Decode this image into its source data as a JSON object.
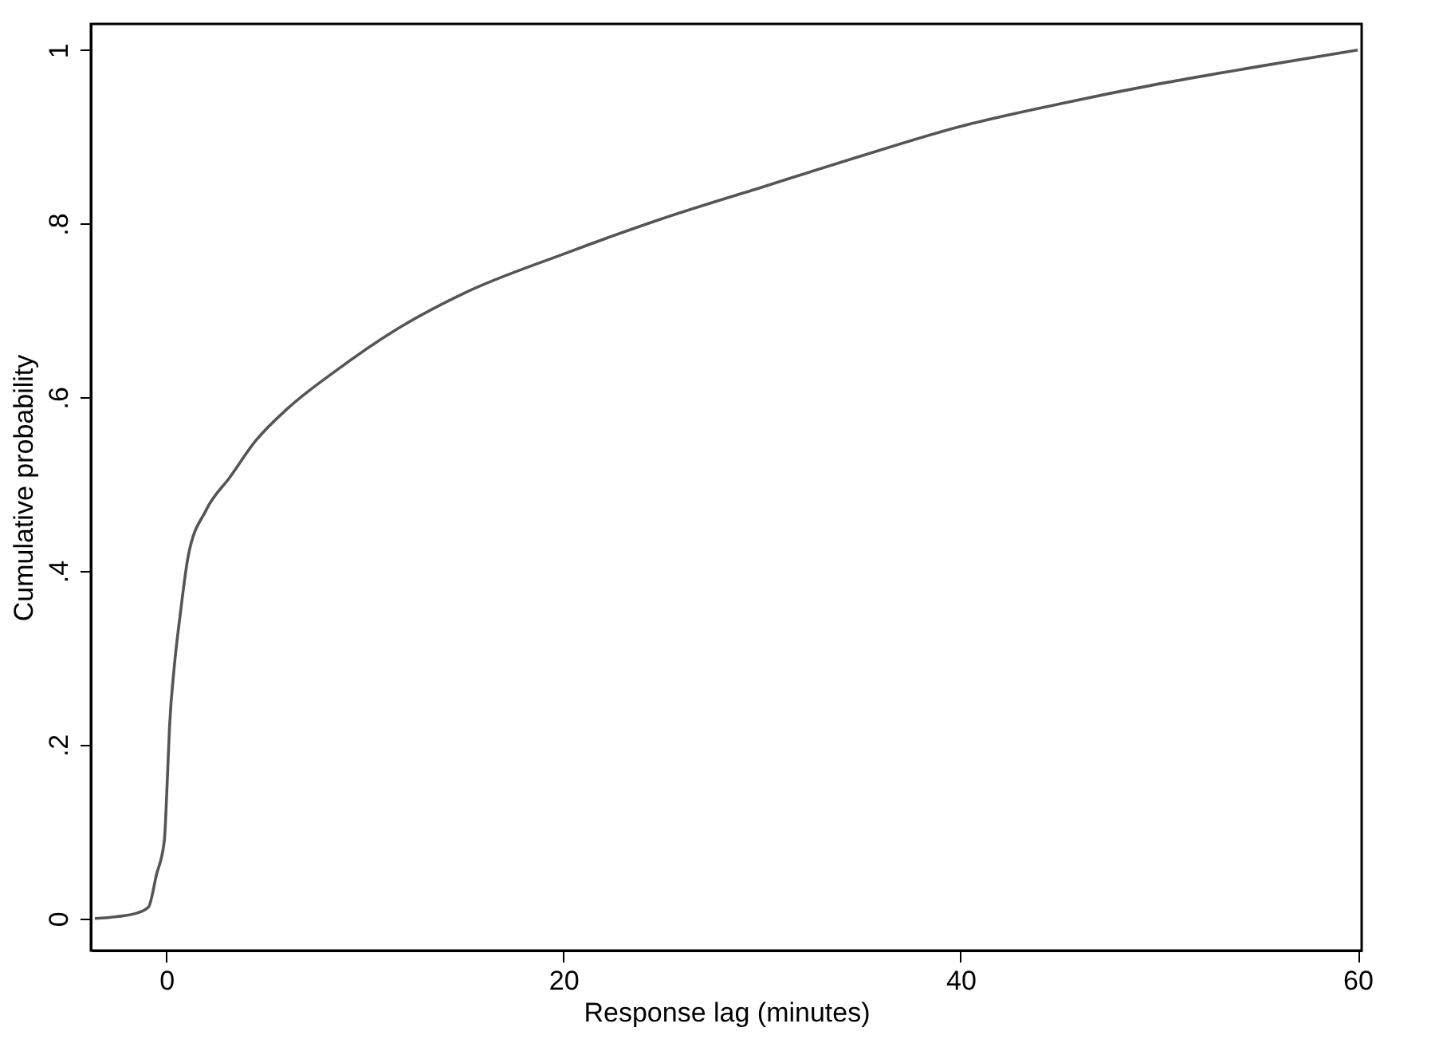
{
  "chart_data": {
    "type": "line",
    "xlabel": "Response lag (minutes)",
    "ylabel": "Cumulative probability",
    "x": [
      -3.6,
      -2.5,
      -1.5,
      -0.9,
      -0.5,
      -0.1,
      0.05,
      0.16,
      0.4,
      0.7,
      1.1,
      2.0,
      3.2,
      4.5,
      6.1,
      8.5,
      11.5,
      15,
      20,
      25,
      30,
      35,
      40,
      45,
      50,
      55,
      60
    ],
    "series": [
      {
        "color": "#555555",
        "values": [
          0.0,
          0.002,
          0.006,
          0.013,
          0.05,
          0.09,
          0.16,
          0.22,
          0.29,
          0.35,
          0.417,
          0.47,
          0.508,
          0.55,
          0.587,
          0.63,
          0.677,
          0.72,
          0.765,
          0.806,
          0.842,
          0.878,
          0.912,
          0.938,
          0.961,
          0.981,
          1.0
        ]
      }
    ],
    "xlim": [
      -3.8,
      60.2
    ],
    "ylim": [
      -0.037,
      1.03
    ],
    "xticks": [
      0,
      20,
      40,
      60
    ],
    "yticks": [
      0,
      {
        "value": 0.2,
        "label": ".2"
      },
      {
        "value": 0.4,
        "label": ".4"
      },
      {
        "value": 0.6,
        "label": ".6"
      },
      {
        "value": 0.8,
        "label": ".8"
      },
      1
    ],
    "grid": false,
    "legend": false,
    "marker": "none",
    "line_style": "solid"
  }
}
